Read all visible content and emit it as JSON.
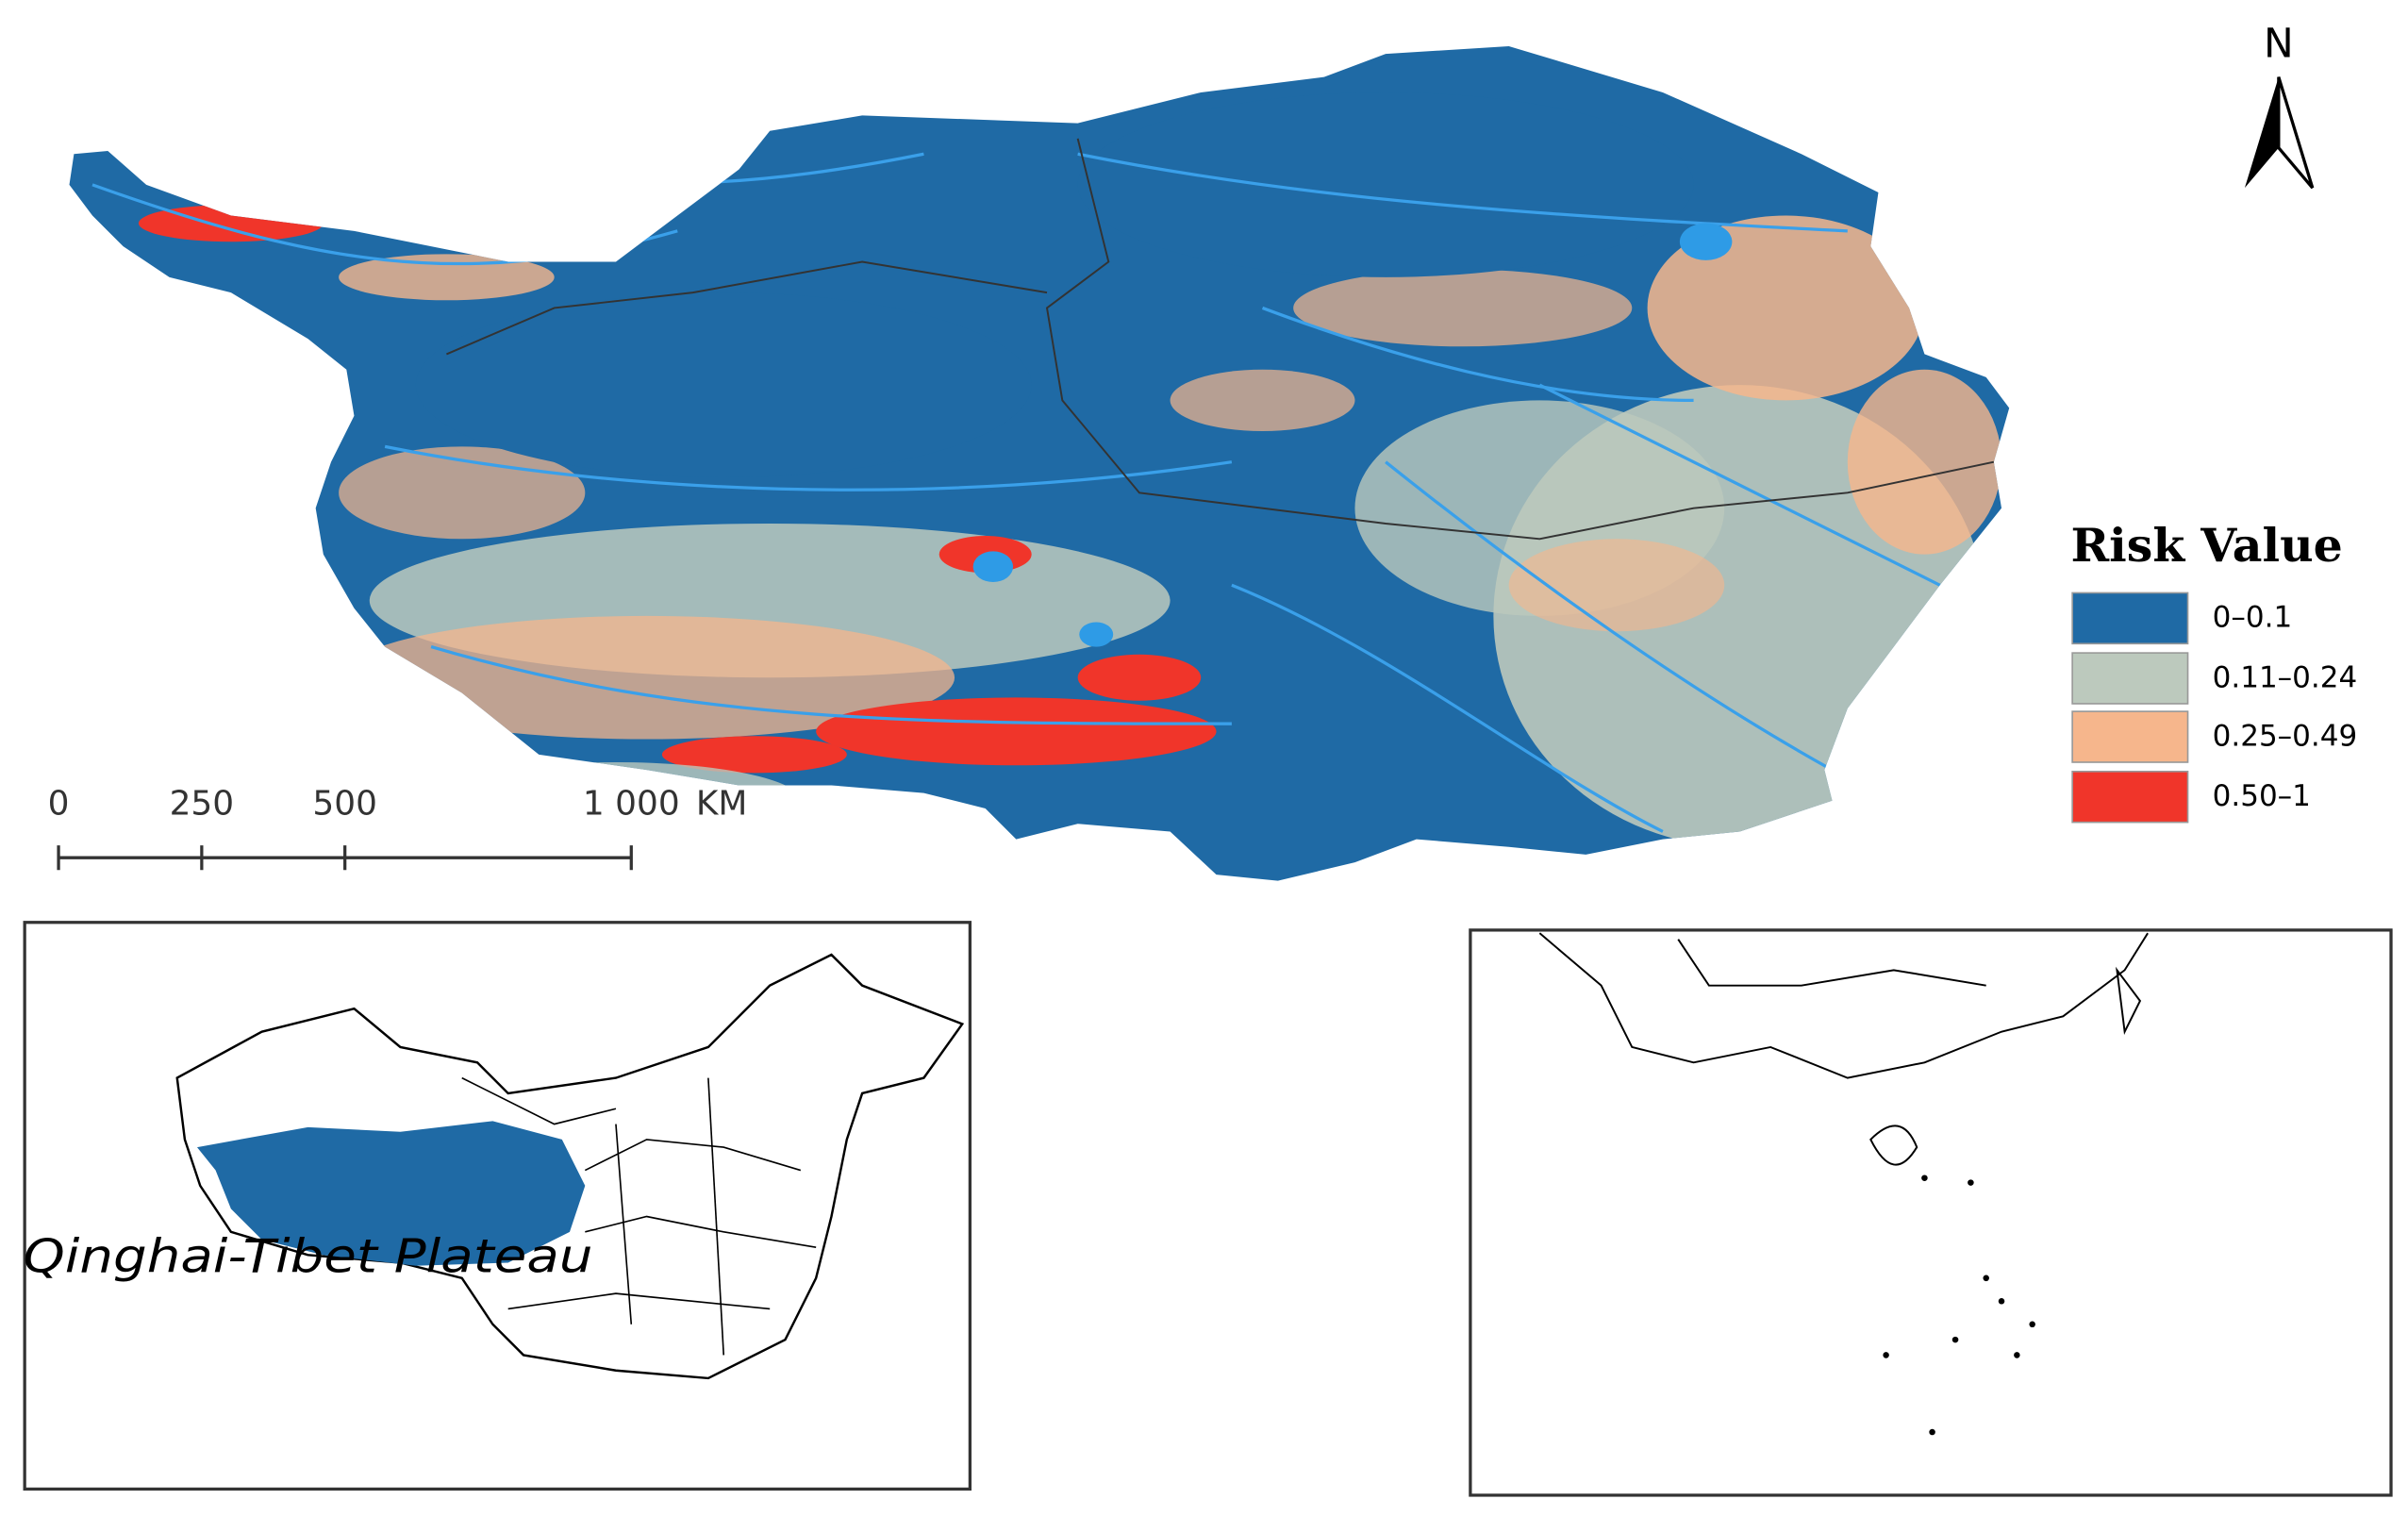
{
  "north_label": "N",
  "legend": {
    "title": "Risk Value",
    "items": [
      {
        "label": "0–0.1",
        "color": "#1f6aa5"
      },
      {
        "label": "0.11–0.24",
        "color": "#bcc9bd"
      },
      {
        "label": "0.25–0.49",
        "color": "#f6b68c"
      },
      {
        "label": "0.50–1",
        "color": "#f0352a"
      }
    ]
  },
  "scale_bar": {
    "ticks": [
      0,
      250,
      500,
      {
        "value": 1000,
        "label": "1 000"
      }
    ],
    "unit": "KM"
  },
  "inset_label": "Qinghai-Tibet Plateau"
}
